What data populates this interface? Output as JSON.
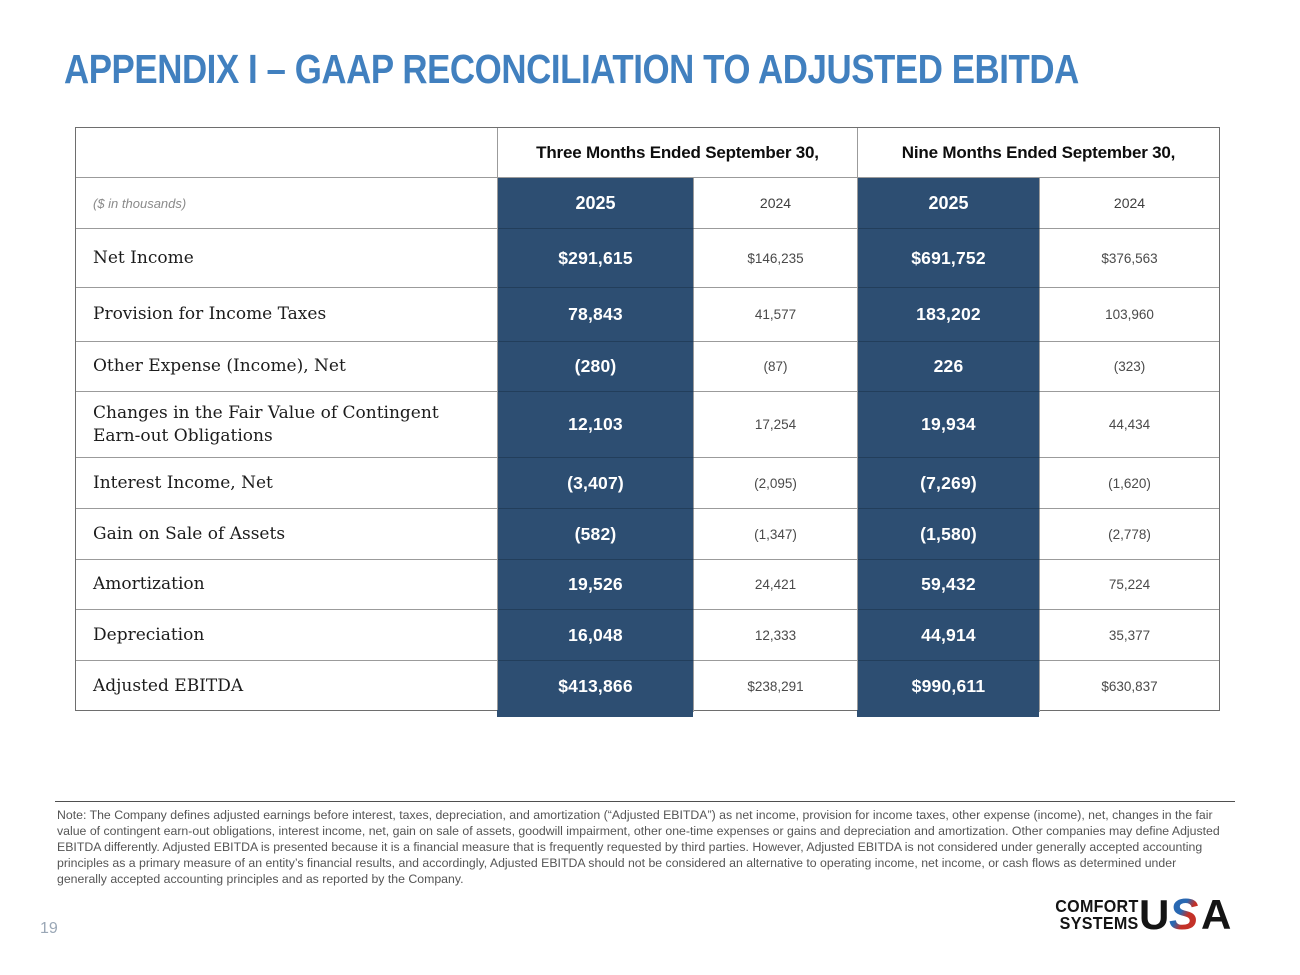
{
  "page": {
    "title": "APPENDIX I – GAAP RECONCILIATION TO ADJUSTED EBITDA",
    "page_number": "19"
  },
  "table": {
    "units_label": "($ in thousands)",
    "col_groups": [
      "Three Months Ended September 30,",
      "Nine Months Ended September 30,"
    ],
    "year_headers": [
      "2025",
      "2024",
      "2025",
      "2024"
    ],
    "rows": [
      {
        "label": "Net Income",
        "values": [
          "$291,615",
          "$146,235",
          "$691,752",
          "$376,563"
        ]
      },
      {
        "label": "Provision for Income Taxes",
        "values": [
          "78,843",
          "41,577",
          "183,202",
          "103,960"
        ]
      },
      {
        "label": "Other Expense (Income), Net",
        "values": [
          "(280)",
          "(87)",
          "226",
          "(323)"
        ]
      },
      {
        "label": "Changes in the Fair Value of Contingent Earn-out Obligations",
        "values": [
          "12,103",
          "17,254",
          "19,934",
          "44,434"
        ]
      },
      {
        "label": "Interest Income, Net",
        "values": [
          "(3,407)",
          "(2,095)",
          "(7,269)",
          "(1,620)"
        ]
      },
      {
        "label": "Gain on Sale of Assets",
        "values": [
          "(582)",
          "(1,347)",
          "(1,580)",
          "(2,778)"
        ]
      },
      {
        "label": "Amortization",
        "values": [
          "19,526",
          "24,421",
          "59,432",
          "75,224"
        ]
      },
      {
        "label": "Depreciation",
        "values": [
          "16,048",
          "12,333",
          "44,914",
          "35,377"
        ]
      },
      {
        "label": "Adjusted EBITDA",
        "values": [
          "$413,866",
          "$238,291",
          "$990,611",
          "$630,837"
        ]
      }
    ]
  },
  "note": {
    "text": "Note:  The Company defines adjusted earnings before interest, taxes, depreciation, and amortization (“Adjusted EBITDA”) as net income, provision for income taxes, other expense (income), net, changes in the fair value of contingent earn-out obligations, interest income, net, gain on sale of assets, goodwill impairment, other one-time expenses or gains and depreciation and amortization.  Other companies may define Adjusted EBITDA differently.   Adjusted EBITDA is presented because it is a financial measure that is frequently requested by third parties.  However, Adjusted EBITDA is not considered under generally accepted accounting principles as a primary measure of an entity’s financial results, and accordingly, Adjusted EBITDA should not be considered an alternative to operating income, net income, or cash flows as determined under generally accepted accounting principles and as reported by the Company."
  },
  "logo": {
    "line1": "COMFORT",
    "line2": "SYSTEMS",
    "usa": {
      "u": "U",
      "s": "S",
      "a": "A"
    }
  },
  "colors": {
    "accent_blue": "#4180BF",
    "table_blue": "#2D4E72",
    "logo_s_blue": "#2968B2",
    "logo_s_red": "#C33128",
    "grid_line": "#9b9b9b"
  }
}
